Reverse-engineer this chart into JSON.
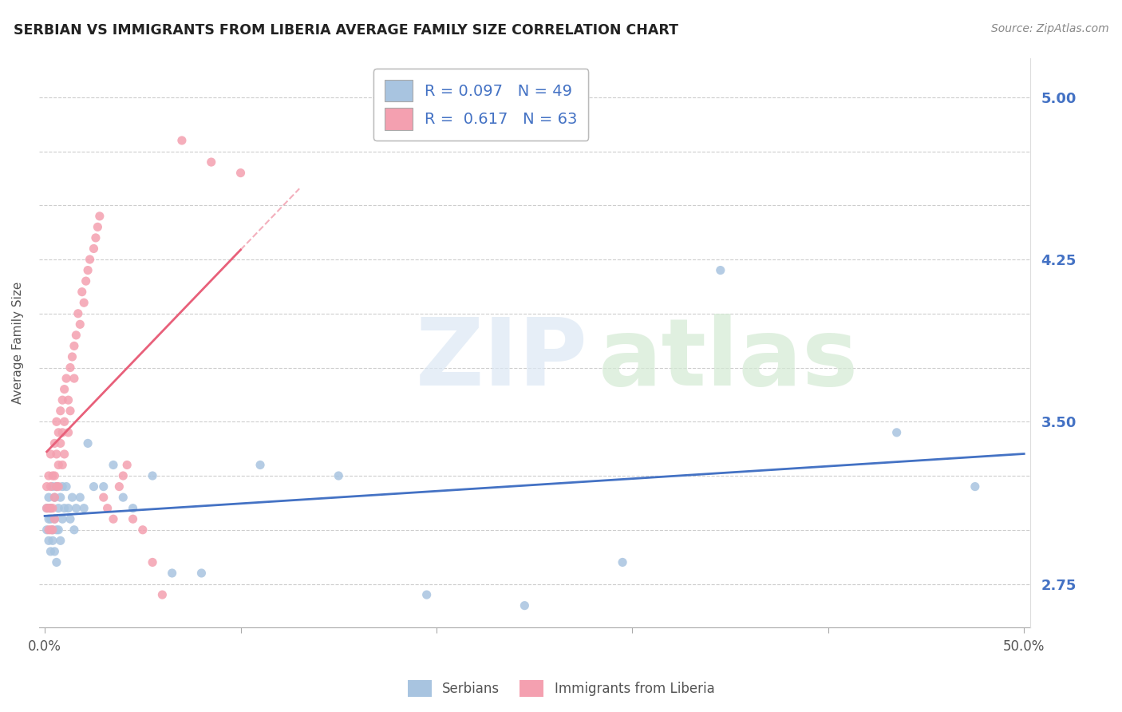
{
  "title": "SERBIAN VS IMMIGRANTS FROM LIBERIA AVERAGE FAMILY SIZE CORRELATION CHART",
  "source": "Source: ZipAtlas.com",
  "ylabel": "Average Family Size",
  "xlim": [
    -0.003,
    0.503
  ],
  "ylim": [
    2.55,
    5.18
  ],
  "ytick_positions": [
    2.75,
    3.0,
    3.25,
    3.5,
    3.75,
    4.0,
    4.25,
    4.5,
    4.75,
    5.0
  ],
  "ytick_labels_right": [
    "2.75",
    "3.50",
    "4.25",
    "5.00"
  ],
  "ytick_positions_right": [
    2.75,
    3.5,
    4.25,
    5.0
  ],
  "xtick_positions": [
    0.0,
    0.1,
    0.2,
    0.3,
    0.4,
    0.5
  ],
  "serbian_color": "#a8c4e0",
  "liberia_color": "#f4a0b0",
  "serbian_line_color": "#4472c4",
  "liberia_line_color": "#e8607a",
  "label_color": "#4472c4",
  "background_color": "#ffffff",
  "grid_color": "#c8c8c8",
  "serbian_x": [
    0.001,
    0.001,
    0.002,
    0.002,
    0.002,
    0.003,
    0.003,
    0.003,
    0.004,
    0.004,
    0.004,
    0.005,
    0.005,
    0.005,
    0.006,
    0.006,
    0.006,
    0.007,
    0.007,
    0.008,
    0.008,
    0.009,
    0.009,
    0.01,
    0.011,
    0.012,
    0.013,
    0.014,
    0.015,
    0.016,
    0.018,
    0.02,
    0.022,
    0.025,
    0.03,
    0.035,
    0.04,
    0.045,
    0.055,
    0.065,
    0.08,
    0.11,
    0.15,
    0.195,
    0.245,
    0.295,
    0.345,
    0.435,
    0.475
  ],
  "serbian_y": [
    3.1,
    3.0,
    3.15,
    3.05,
    2.95,
    3.1,
    3.05,
    2.9,
    3.2,
    3.0,
    2.95,
    3.15,
    3.05,
    2.9,
    3.2,
    3.0,
    2.85,
    3.1,
    3.0,
    3.15,
    2.95,
    3.2,
    3.05,
    3.1,
    3.2,
    3.1,
    3.05,
    3.15,
    3.0,
    3.1,
    3.15,
    3.1,
    3.4,
    3.2,
    3.2,
    3.3,
    3.15,
    3.1,
    3.25,
    2.8,
    2.8,
    3.3,
    3.25,
    2.7,
    2.65,
    2.85,
    4.2,
    3.45,
    3.2
  ],
  "liberia_x": [
    0.001,
    0.001,
    0.002,
    0.002,
    0.002,
    0.003,
    0.003,
    0.003,
    0.003,
    0.004,
    0.004,
    0.004,
    0.005,
    0.005,
    0.005,
    0.005,
    0.006,
    0.006,
    0.006,
    0.007,
    0.007,
    0.007,
    0.008,
    0.008,
    0.009,
    0.009,
    0.009,
    0.01,
    0.01,
    0.01,
    0.011,
    0.012,
    0.012,
    0.013,
    0.013,
    0.014,
    0.015,
    0.015,
    0.016,
    0.017,
    0.018,
    0.019,
    0.02,
    0.021,
    0.022,
    0.023,
    0.025,
    0.026,
    0.027,
    0.028,
    0.03,
    0.032,
    0.035,
    0.038,
    0.04,
    0.042,
    0.045,
    0.05,
    0.055,
    0.06,
    0.07,
    0.085,
    0.1
  ],
  "liberia_y": [
    3.2,
    3.1,
    3.25,
    3.1,
    3.0,
    3.35,
    3.2,
    3.1,
    3.0,
    3.25,
    3.1,
    3.0,
    3.4,
    3.25,
    3.15,
    3.05,
    3.5,
    3.35,
    3.2,
    3.45,
    3.3,
    3.2,
    3.55,
    3.4,
    3.6,
    3.45,
    3.3,
    3.65,
    3.5,
    3.35,
    3.7,
    3.6,
    3.45,
    3.75,
    3.55,
    3.8,
    3.85,
    3.7,
    3.9,
    4.0,
    3.95,
    4.1,
    4.05,
    4.15,
    4.2,
    4.25,
    4.3,
    4.35,
    4.4,
    4.45,
    3.15,
    3.1,
    3.05,
    3.2,
    3.25,
    3.3,
    3.05,
    3.0,
    2.85,
    2.7,
    4.8,
    4.7,
    4.65
  ]
}
